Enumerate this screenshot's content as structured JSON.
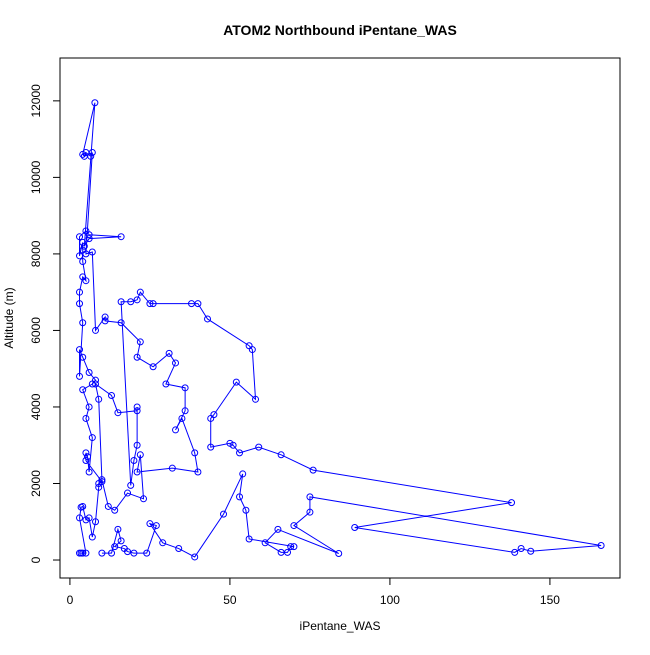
{
  "chart_data": {
    "type": "line",
    "title": "ATOM2 Northbound iPentane_WAS",
    "x_label": "iPentane_WAS",
    "y_label": "Altitude (m)",
    "color": "#0000ff",
    "markers": true,
    "grid": false,
    "xlim": [
      -3.1,
      171.9
    ],
    "ylim": [
      -470,
      13120
    ],
    "xticks": [
      0,
      50,
      100,
      150
    ],
    "yticks": [
      0,
      2000,
      4000,
      6000,
      8000,
      10000,
      12000
    ],
    "x": [
      3,
      3.5,
      4,
      5,
      3,
      3.5,
      4,
      5,
      6,
      7,
      8,
      9,
      9,
      10,
      5,
      5,
      5.5,
      6,
      7,
      5,
      6,
      4,
      7,
      8,
      6,
      4,
      3,
      3,
      4,
      3,
      3,
      4,
      5,
      4,
      4,
      4,
      3,
      3,
      5,
      6,
      16,
      6,
      4.5,
      7.8,
      4,
      4.5,
      5,
      6.5,
      7,
      5,
      7,
      8,
      11,
      11,
      16,
      22,
      21,
      26,
      31,
      33,
      30,
      36,
      36,
      33,
      35,
      39,
      40,
      32,
      21,
      22,
      23,
      18,
      14,
      12,
      10,
      9,
      8,
      13,
      15,
      21,
      21,
      21,
      20,
      19,
      16,
      19,
      21,
      22,
      25,
      26,
      38,
      40,
      43,
      56,
      57,
      58,
      52,
      45,
      44,
      44,
      50,
      51,
      53,
      59,
      66,
      76,
      138,
      89,
      139,
      141,
      144,
      166,
      75,
      75,
      70,
      84,
      65,
      61,
      66,
      68,
      69,
      70,
      56,
      55,
      53,
      54,
      48,
      39,
      34,
      29,
      25,
      27,
      24,
      20,
      18,
      17,
      14,
      16,
      15,
      13,
      10
    ],
    "values": [
      180,
      180,
      180,
      180,
      1100,
      1380,
      1400,
      1050,
      1100,
      600,
      1000,
      1900,
      2000,
      2050,
      2600,
      2800,
      2700,
      2300,
      3200,
      3700,
      4000,
      4450,
      4600,
      4700,
      4900,
      5300,
      5500,
      4800,
      6200,
      6700,
      7000,
      7400,
      7300,
      7800,
      8100,
      8300,
      7950,
      8450,
      8600,
      8500,
      8450,
      8400,
      8200,
      11950,
      10600,
      10550,
      10650,
      10550,
      10650,
      8000,
      8050,
      6000,
      6350,
      6250,
      6200,
      5700,
      5300,
      5050,
      5400,
      5150,
      4600,
      4500,
      3900,
      3400,
      3700,
      2800,
      2300,
      2400,
      2300,
      2750,
      1600,
      1750,
      1300,
      1400,
      2100,
      4200,
      4600,
      4300,
      3850,
      3900,
      4000,
      3000,
      2600,
      1950,
      6750,
      6750,
      6800,
      7000,
      6700,
      6700,
      6700,
      6700,
      6300,
      5600,
      5500,
      4200,
      4650,
      3800,
      3700,
      2950,
      3050,
      3000,
      2800,
      2950,
      2750,
      2350,
      1500,
      850,
      200,
      300,
      230,
      380,
      1650,
      1250,
      900,
      170,
      800,
      450,
      200,
      200,
      350,
      350,
      550,
      1300,
      1650,
      2250,
      1200,
      80,
      300,
      450,
      950,
      900,
      180,
      180,
      220,
      300,
      350,
      500,
      800,
      180,
      180
    ]
  }
}
